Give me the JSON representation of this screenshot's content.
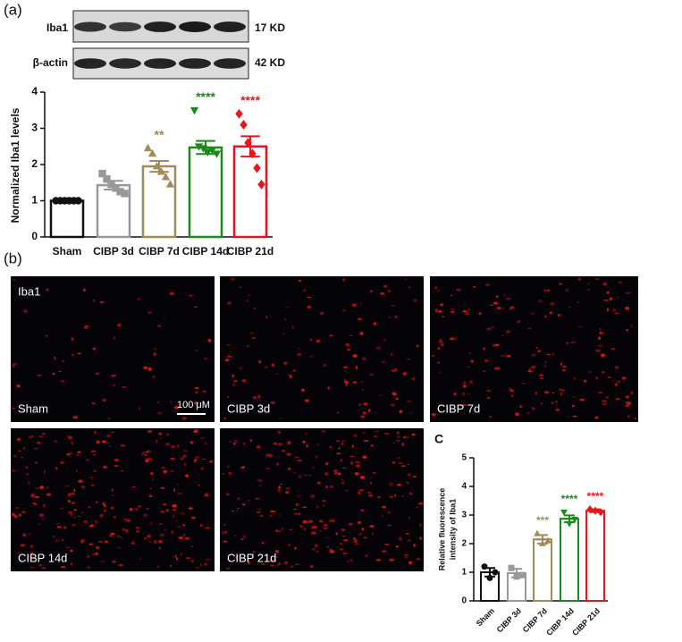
{
  "figure": {
    "panel_a": "(a)",
    "panel_b": "(b)",
    "panel_c": "C"
  },
  "blot": {
    "rows": [
      {
        "protein": "Iba1",
        "size": "17 KD"
      },
      {
        "protein": "β-actin",
        "size": "42 KD"
      }
    ]
  },
  "images": {
    "stain": "Iba1",
    "scale_bar": "100 μM",
    "labels": [
      "Sham",
      "CIBP 3d",
      "CIBP 7d",
      "CIBP 14d",
      "CIBP 21d"
    ]
  },
  "chart_data": [
    {
      "type": "bar",
      "y_label": [
        "Normalized Iba1 levels"
      ],
      "categories": [
        "Sham",
        "CIBP 3d",
        "CIBP 7d",
        "CIBP 14d",
        "CIBP 21d"
      ],
      "values": [
        1,
        1.43,
        1.95,
        2.47,
        2.5
      ],
      "errors": [
        0,
        0.12,
        0.15,
        0.18,
        0.28
      ],
      "points": [
        [
          1,
          1,
          1,
          1,
          1,
          1
        ],
        [
          1.75,
          1.6,
          1.45,
          1.35,
          1.25,
          1.2
        ],
        [
          2.45,
          2.3,
          1.95,
          1.8,
          1.65,
          1.45
        ],
        [
          3.5,
          2.5,
          2.45,
          2.35,
          2.4,
          2.3
        ],
        [
          3.4,
          3.1,
          2.6,
          2.3,
          1.9,
          1.45
        ]
      ],
      "colors": [
        "#111111",
        "#999999",
        "#a08c5a",
        "#1a8a1a",
        "#e8161b"
      ],
      "annotations": [
        null,
        null,
        "**",
        "****",
        "****"
      ],
      "ylim": [
        0,
        4
      ],
      "yticks": [
        0,
        1,
        2,
        3,
        4
      ]
    },
    {
      "type": "bar",
      "y_label": [
        "Relative fluorescence",
        "intensity of Iba1"
      ],
      "categories": [
        "Sham",
        "CIBP 3d",
        "CIBP 7d",
        "CIBP 14d",
        "CIBP 21d"
      ],
      "values": [
        1.0,
        0.97,
        2.15,
        2.87,
        3.15
      ],
      "errors": [
        0.15,
        0.15,
        0.15,
        0.12,
        0.05
      ],
      "points": [
        [
          1.2,
          0.8,
          1.0
        ],
        [
          1.15,
          0.85,
          0.9
        ],
        [
          2.35,
          2.0,
          2.1
        ],
        [
          3.1,
          2.7,
          2.85
        ],
        [
          3.2,
          3.15,
          3.1
        ]
      ],
      "colors": [
        "#111111",
        "#999999",
        "#a08c5a",
        "#1a8a1a",
        "#e8161b"
      ],
      "annotations": [
        null,
        null,
        "***",
        "****",
        "****"
      ],
      "ylim": [
        0,
        5
      ],
      "yticks": [
        0,
        1,
        2,
        3,
        4,
        5
      ]
    }
  ]
}
